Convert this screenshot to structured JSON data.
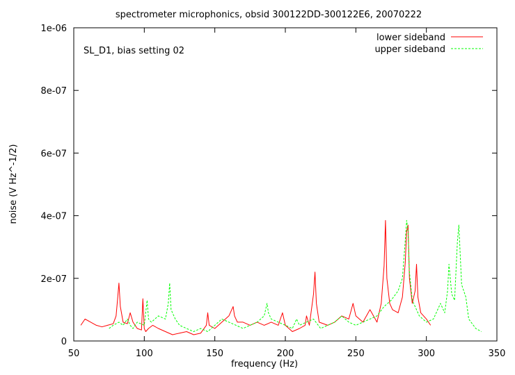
{
  "chart_data": {
    "type": "line",
    "title": "spectrometer microphonics, obsid 300122DD-300122E6, 20070222",
    "annotation": "SL_D1, bias setting 02",
    "xlabel": "frequency (Hz)",
    "ylabel": "noise (V Hz^-1/2)",
    "xlim": [
      50,
      350
    ],
    "ylim": [
      0,
      1e-06
    ],
    "x_ticks": [
      50,
      100,
      150,
      200,
      250,
      300,
      350
    ],
    "x_tick_labels": [
      "50",
      "100",
      "150",
      "200",
      "250",
      "300",
      "350"
    ],
    "y_ticks": [
      0,
      2e-07,
      4e-07,
      6e-07,
      8e-07,
      1e-06
    ],
    "y_tick_labels": [
      "0",
      "2e-07",
      "4e-07",
      "6e-07",
      "8e-07",
      "1e-06"
    ],
    "grid": false,
    "legend_position": "top-right",
    "series": [
      {
        "name": "lower sideband",
        "color": "#ff0000",
        "style": "solid",
        "x": [
          55,
          58,
          62,
          66,
          70,
          74,
          78,
          80,
          81,
          82,
          83,
          85,
          88,
          90,
          92,
          95,
          98,
          99,
          100,
          101,
          103,
          106,
          110,
          115,
          120,
          125,
          130,
          135,
          140,
          144,
          145,
          146,
          150,
          155,
          160,
          163,
          164,
          166,
          170,
          175,
          180,
          185,
          190,
          195,
          198,
          200,
          205,
          210,
          214,
          215,
          217,
          220,
          221,
          222,
          224,
          230,
          235,
          240,
          245,
          248,
          250,
          255,
          260,
          265,
          268,
          270,
          271,
          272,
          274,
          276,
          280,
          283,
          285,
          286,
          287,
          288,
          290,
          292,
          293,
          294,
          296,
          300,
          303
        ],
        "y": [
          5e-08,
          7e-08,
          6e-08,
          5e-08,
          4.5e-08,
          5e-08,
          5.5e-08,
          8e-08,
          1.3e-07,
          1.85e-07,
          1.1e-07,
          6e-08,
          5.5e-08,
          9e-08,
          6e-08,
          4e-08,
          3.5e-08,
          1.35e-07,
          4e-08,
          3e-08,
          4e-08,
          5e-08,
          4e-08,
          3e-08,
          2e-08,
          2.5e-08,
          3e-08,
          2e-08,
          2.5e-08,
          5e-08,
          9e-08,
          5e-08,
          4e-08,
          6e-08,
          8e-08,
          1.1e-07,
          8e-08,
          6e-08,
          6e-08,
          5e-08,
          6e-08,
          5e-08,
          6e-08,
          5e-08,
          9e-08,
          5e-08,
          3e-08,
          4e-08,
          5e-08,
          8e-08,
          5e-08,
          1.5e-07,
          2.2e-07,
          1.2e-07,
          6e-08,
          5e-08,
          6e-08,
          8e-08,
          7e-08,
          1.2e-07,
          8e-08,
          6e-08,
          1e-07,
          6e-08,
          1.2e-07,
          2.4e-07,
          3.85e-07,
          2e-07,
          1.2e-07,
          1e-07,
          9e-08,
          1.4e-07,
          2.5e-07,
          3.5e-07,
          3.7e-07,
          2e-07,
          1.2e-07,
          1.6e-07,
          2.45e-07,
          1.4e-07,
          9e-08,
          7e-08,
          5e-08
        ]
      },
      {
        "name": "upper sideband",
        "color": "#00ff00",
        "style": "dashed",
        "x": [
          75,
          78,
          82,
          85,
          88,
          90,
          92,
          95,
          100,
          102,
          103,
          105,
          110,
          115,
          117,
          118,
          119,
          122,
          125,
          130,
          135,
          140,
          145,
          150,
          155,
          160,
          165,
          170,
          175,
          180,
          185,
          187,
          188,
          190,
          195,
          200,
          205,
          208,
          210,
          215,
          220,
          225,
          230,
          235,
          240,
          245,
          250,
          255,
          260,
          265,
          270,
          275,
          280,
          283,
          285,
          286,
          287,
          288,
          290,
          295,
          300,
          305,
          310,
          313,
          315,
          316,
          318,
          320,
          322,
          323,
          325,
          328,
          330,
          335,
          339
        ],
        "y": [
          4e-08,
          5e-08,
          6e-08,
          5e-08,
          7e-08,
          5e-08,
          4e-08,
          6e-08,
          5e-08,
          1.3e-07,
          7e-08,
          6e-08,
          8e-08,
          7e-08,
          1.2e-07,
          1.85e-07,
          1e-07,
          7e-08,
          5e-08,
          4e-08,
          3e-08,
          4e-08,
          3e-08,
          5e-08,
          7e-08,
          6e-08,
          5e-08,
          4e-08,
          5e-08,
          6e-08,
          8e-08,
          1.2e-07,
          9e-08,
          7e-08,
          6e-08,
          5e-08,
          4e-08,
          7e-08,
          5e-08,
          6e-08,
          7e-08,
          4e-08,
          5e-08,
          6e-08,
          8e-08,
          6e-08,
          5e-08,
          6e-08,
          7e-08,
          8e-08,
          1.1e-07,
          1.3e-07,
          1.6e-07,
          2e-07,
          3.2e-07,
          3.85e-07,
          3.5e-07,
          2.2e-07,
          1.3e-07,
          8e-08,
          6e-08,
          7e-08,
          1.2e-07,
          9e-08,
          1.6e-07,
          2.45e-07,
          1.5e-07,
          1.3e-07,
          3.2e-07,
          3.7e-07,
          1.8e-07,
          1.4e-07,
          7e-08,
          4e-08,
          3e-08
        ]
      }
    ]
  }
}
